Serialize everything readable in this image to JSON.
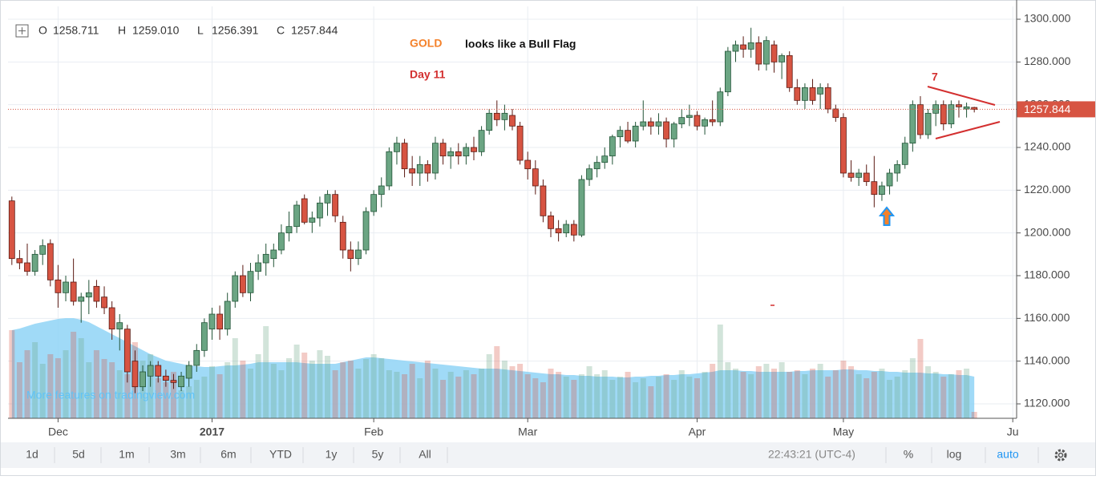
{
  "chart_data": {
    "type": "candlestick",
    "header_labels": [
      "O",
      "H",
      "L",
      "C"
    ],
    "header_values": [
      "1258.711",
      "1259.010",
      "1256.391",
      "1257.844"
    ],
    "annotations": {
      "title_word": "GOLD",
      "title_rest": "looks like a Bull Flag",
      "day": "Day 11",
      "count": "7",
      "watermark": "More features on tradingview.com"
    },
    "categories": [
      null,
      null,
      null,
      null,
      null,
      null,
      "Dec",
      null,
      null,
      null,
      null,
      null,
      null,
      null,
      null,
      null,
      null,
      null,
      null,
      null,
      null,
      null,
      null,
      null,
      null,
      null,
      "2017",
      null,
      null,
      null,
      null,
      null,
      null,
      null,
      null,
      null,
      null,
      null,
      null,
      null,
      null,
      null,
      null,
      null,
      null,
      null,
      null,
      "Feb",
      null,
      null,
      null,
      null,
      null,
      null,
      null,
      null,
      null,
      null,
      null,
      null,
      null,
      null,
      null,
      null,
      null,
      null,
      null,
      "Mar",
      null,
      null,
      null,
      null,
      null,
      null,
      null,
      null,
      null,
      null,
      null,
      null,
      null,
      null,
      null,
      null,
      null,
      null,
      null,
      null,
      null,
      "Apr",
      null,
      null,
      null,
      null,
      null,
      null,
      null,
      null,
      null,
      null,
      null,
      null,
      null,
      null,
      null,
      null,
      null,
      null,
      "May",
      null,
      null,
      null,
      null,
      null,
      null,
      null,
      null,
      null,
      null,
      null,
      null,
      null,
      null,
      null,
      null,
      null,
      null,
      null,
      null,
      null,
      "Ju"
    ],
    "ohlc": [
      [
        1215,
        1217,
        1185,
        1188
      ],
      [
        1188,
        1192,
        1183,
        1186
      ],
      [
        1186,
        1195,
        1180,
        1182
      ],
      [
        1182,
        1192,
        1180,
        1190
      ],
      [
        1190,
        1197,
        1185,
        1194
      ],
      [
        1195,
        1197,
        1175,
        1178
      ],
      [
        1178,
        1185,
        1165,
        1172
      ],
      [
        1172,
        1180,
        1168,
        1177
      ],
      [
        1177,
        1188,
        1166,
        1168
      ],
      [
        1168,
        1172,
        1158,
        1170
      ],
      [
        1170,
        1178,
        1162,
        1172
      ],
      [
        1175,
        1178,
        1165,
        1168
      ],
      [
        1170,
        1175,
        1162,
        1165
      ],
      [
        1165,
        1168,
        1150,
        1155
      ],
      [
        1155,
        1162,
        1145,
        1158
      ],
      [
        1155,
        1157,
        1130,
        1135
      ],
      [
        1140,
        1145,
        1125,
        1128
      ],
      [
        1128,
        1138,
        1126,
        1135
      ],
      [
        1133,
        1140,
        1128,
        1138
      ],
      [
        1138,
        1140,
        1130,
        1133
      ],
      [
        1133,
        1136,
        1128,
        1131
      ],
      [
        1131,
        1134,
        1127,
        1130
      ],
      [
        1128,
        1135,
        1126,
        1133
      ],
      [
        1132,
        1140,
        1128,
        1138
      ],
      [
        1138,
        1148,
        1135,
        1145
      ],
      [
        1145,
        1160,
        1142,
        1158
      ],
      [
        1155,
        1165,
        1150,
        1162
      ],
      [
        1162,
        1166,
        1150,
        1155
      ],
      [
        1155,
        1172,
        1152,
        1168
      ],
      [
        1168,
        1182,
        1165,
        1180
      ],
      [
        1180,
        1185,
        1170,
        1172
      ],
      [
        1172,
        1186,
        1168,
        1182
      ],
      [
        1182,
        1190,
        1178,
        1186
      ],
      [
        1186,
        1195,
        1180,
        1190
      ],
      [
        1188,
        1195,
        1184,
        1192
      ],
      [
        1192,
        1204,
        1190,
        1200
      ],
      [
        1200,
        1210,
        1196,
        1203
      ],
      [
        1203,
        1215,
        1200,
        1213
      ],
      [
        1216,
        1218,
        1204,
        1205
      ],
      [
        1205,
        1210,
        1200,
        1207
      ],
      [
        1207,
        1217,
        1203,
        1214
      ],
      [
        1214,
        1220,
        1208,
        1218
      ],
      [
        1218,
        1220,
        1205,
        1208
      ],
      [
        1205,
        1208,
        1188,
        1192
      ],
      [
        1192,
        1196,
        1182,
        1188
      ],
      [
        1188,
        1196,
        1185,
        1192
      ],
      [
        1192,
        1212,
        1190,
        1210
      ],
      [
        1210,
        1220,
        1208,
        1218
      ],
      [
        1218,
        1226,
        1212,
        1222
      ],
      [
        1222,
        1240,
        1220,
        1238
      ],
      [
        1238,
        1245,
        1232,
        1242
      ],
      [
        1242,
        1244,
        1226,
        1230
      ],
      [
        1230,
        1236,
        1222,
        1228
      ],
      [
        1228,
        1236,
        1222,
        1232
      ],
      [
        1232,
        1234,
        1224,
        1228
      ],
      [
        1228,
        1245,
        1225,
        1242
      ],
      [
        1242,
        1244,
        1232,
        1236
      ],
      [
        1236,
        1240,
        1230,
        1238
      ],
      [
        1238,
        1242,
        1232,
        1236
      ],
      [
        1236,
        1242,
        1232,
        1240
      ],
      [
        1240,
        1245,
        1234,
        1238
      ],
      [
        1238,
        1250,
        1236,
        1248
      ],
      [
        1248,
        1258,
        1246,
        1256
      ],
      [
        1256,
        1262,
        1250,
        1253
      ],
      [
        1253,
        1260,
        1248,
        1256
      ],
      [
        1255,
        1258,
        1248,
        1250
      ],
      [
        1250,
        1252,
        1232,
        1234
      ],
      [
        1234,
        1238,
        1225,
        1230
      ],
      [
        1230,
        1234,
        1218,
        1222
      ],
      [
        1222,
        1225,
        1205,
        1208
      ],
      [
        1208,
        1210,
        1198,
        1202
      ],
      [
        1202,
        1206,
        1196,
        1200
      ],
      [
        1200,
        1206,
        1198,
        1204
      ],
      [
        1204,
        1206,
        1196,
        1199
      ],
      [
        1199,
        1227,
        1198,
        1225
      ],
      [
        1225,
        1232,
        1222,
        1230
      ],
      [
        1230,
        1236,
        1226,
        1233
      ],
      [
        1233,
        1240,
        1230,
        1236
      ],
      [
        1236,
        1246,
        1232,
        1245
      ],
      [
        1245,
        1250,
        1240,
        1248
      ],
      [
        1248,
        1252,
        1242,
        1243
      ],
      [
        1243,
        1252,
        1240,
        1250
      ],
      [
        1250,
        1262,
        1248,
        1252
      ],
      [
        1252,
        1254,
        1246,
        1250
      ],
      [
        1250,
        1256,
        1246,
        1252
      ],
      [
        1252,
        1254,
        1240,
        1244
      ],
      [
        1244,
        1252,
        1240,
        1251
      ],
      [
        1251,
        1258,
        1249,
        1254
      ],
      [
        1254,
        1260,
        1250,
        1255
      ],
      [
        1255,
        1257,
        1248,
        1250
      ],
      [
        1250,
        1254,
        1246,
        1253
      ],
      [
        1253,
        1262,
        1250,
        1252
      ],
      [
        1252,
        1268,
        1250,
        1266
      ],
      [
        1266,
        1287,
        1264,
        1285
      ],
      [
        1285,
        1290,
        1280,
        1288
      ],
      [
        1288,
        1292,
        1282,
        1286
      ],
      [
        1286,
        1296,
        1282,
        1289
      ],
      [
        1289,
        1292,
        1276,
        1279
      ],
      [
        1279,
        1292,
        1276,
        1290
      ],
      [
        1288,
        1290,
        1275,
        1280
      ],
      [
        1280,
        1284,
        1272,
        1283
      ],
      [
        1283,
        1285,
        1266,
        1268
      ],
      [
        1268,
        1272,
        1260,
        1262
      ],
      [
        1262,
        1270,
        1258,
        1268
      ],
      [
        1268,
        1272,
        1260,
        1262
      ],
      [
        1265,
        1270,
        1258,
        1268
      ],
      [
        1268,
        1270,
        1256,
        1258
      ],
      [
        1258,
        1260,
        1252,
        1254
      ],
      [
        1254,
        1256,
        1226,
        1228
      ],
      [
        1228,
        1234,
        1224,
        1226
      ],
      [
        1226,
        1230,
        1222,
        1228
      ],
      [
        1228,
        1232,
        1222,
        1224
      ],
      [
        1224,
        1236,
        1212,
        1218
      ],
      [
        1218,
        1224,
        1215,
        1222
      ],
      [
        1222,
        1230,
        1218,
        1228
      ],
      [
        1228,
        1234,
        1224,
        1232
      ],
      [
        1232,
        1245,
        1230,
        1242
      ],
      [
        1242,
        1262,
        1238,
        1260
      ],
      [
        1260,
        1264,
        1244,
        1246
      ],
      [
        1246,
        1258,
        1244,
        1256
      ],
      [
        1256,
        1262,
        1250,
        1260
      ],
      [
        1260,
        1262,
        1248,
        1251
      ],
      [
        1251,
        1262,
        1249,
        1260
      ],
      [
        1260,
        1262,
        1254,
        1259
      ],
      [
        1258,
        1261,
        1254,
        1259
      ],
      [
        1258.711,
        1259.01,
        1256.391,
        1257.844
      ],
      null,
      null,
      null,
      null,
      null
    ],
    "volume": [
      110,
      70,
      85,
      95,
      68,
      80,
      75,
      85,
      108,
      100,
      70,
      85,
      74,
      70,
      60,
      55,
      95,
      72,
      80,
      50,
      45,
      58,
      35,
      40,
      48,
      52,
      65,
      55,
      70,
      100,
      72,
      62,
      80,
      115,
      68,
      60,
      75,
      92,
      82,
      72,
      85,
      78,
      60,
      70,
      72,
      62,
      74,
      80,
      75,
      60,
      58,
      55,
      68,
      50,
      72,
      62,
      48,
      58,
      52,
      60,
      55,
      62,
      80,
      90,
      72,
      65,
      68,
      55,
      50,
      45,
      62,
      58,
      52,
      48,
      55,
      65,
      55,
      60,
      48,
      52,
      58,
      45,
      50,
      40,
      52,
      55,
      48,
      60,
      52,
      50,
      58,
      68,
      117,
      70,
      62,
      58,
      55,
      65,
      68,
      62,
      70,
      58,
      60,
      55,
      62,
      68,
      52,
      60,
      72,
      65,
      55,
      50,
      58,
      62,
      48,
      52,
      60,
      75,
      99,
      65,
      58,
      52,
      55,
      60,
      62,
      8,
      null,
      null,
      null,
      null,
      null
    ],
    "volume_ma": [
      110,
      112,
      115,
      118,
      120,
      122,
      124,
      125,
      125,
      123,
      120,
      115,
      110,
      105,
      100,
      95,
      90,
      85,
      80,
      76,
      72,
      70,
      68,
      66,
      65,
      64,
      64,
      65,
      66,
      66,
      67,
      68,
      70,
      70,
      70,
      70,
      70,
      70,
      69,
      68,
      68,
      68,
      68,
      70,
      72,
      74,
      76,
      76,
      75,
      74,
      73,
      72,
      71,
      70,
      69,
      68,
      67,
      66,
      65,
      64,
      63,
      62,
      62,
      62,
      61,
      60,
      59,
      58,
      57,
      56,
      55,
      55,
      54,
      54,
      53,
      53,
      52,
      52,
      52,
      51,
      51,
      52,
      52,
      53,
      53,
      54,
      54,
      55,
      55,
      56,
      57,
      58,
      60,
      60,
      60,
      59,
      59,
      58,
      58,
      58,
      58,
      58,
      59,
      59,
      60,
      60,
      60,
      60,
      61,
      61,
      60,
      60,
      59,
      59,
      58,
      58,
      57,
      57,
      57,
      56,
      56,
      55,
      55,
      54,
      54,
      52,
      null,
      null,
      null,
      null,
      null
    ],
    "ylim": [
      1113.25,
      1306
    ],
    "yticks": [
      {
        "value": 1120,
        "label": "1120.000"
      },
      {
        "value": 1140,
        "label": "1140.000"
      },
      {
        "value": 1160,
        "label": "1160.000"
      },
      {
        "value": 1180,
        "label": "1180.000"
      },
      {
        "value": 1200,
        "label": "1200.000"
      },
      {
        "value": 1220,
        "label": "1220.000"
      },
      {
        "value": 1240,
        "label": "1240.000"
      },
      {
        "value": 1260,
        "label": "1260.000"
      },
      {
        "value": 1280,
        "label": "1280.000"
      },
      {
        "value": 1300,
        "label": "1300.000"
      }
    ],
    "grid": true,
    "up_color": "#6ba583",
    "down_color": "#d75442",
    "volume_ma_color": "#8fd3f6"
  },
  "toolbar": {
    "ranges": [
      "1d",
      "5d",
      "1m",
      "3m",
      "6m",
      "YTD",
      "1y",
      "5y",
      "All"
    ],
    "time": "22:43:21 (UTC-4)",
    "buttons": [
      "%",
      "log",
      "auto"
    ]
  }
}
